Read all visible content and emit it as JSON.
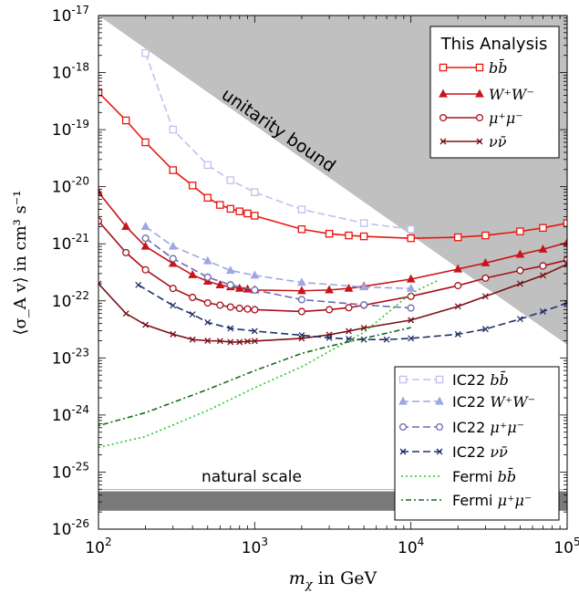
{
  "chart_data": {
    "type": "line",
    "xlabel": {
      "sym": "m",
      "sub": "χ",
      "rest": " in GeV"
    },
    "ylabel": "⟨σ_A v⟩ in cm³ s⁻¹",
    "xscale": "log",
    "yscale": "log",
    "xlim": [
      100,
      100000
    ],
    "ylim": [
      1e-26,
      1e-17
    ],
    "x_ticks": [
      {
        "v": 100,
        "b": "10",
        "e": "2"
      },
      {
        "v": 1000,
        "b": "10",
        "e": "3"
      },
      {
        "v": 10000,
        "b": "10",
        "e": "4"
      },
      {
        "v": 100000,
        "b": "10",
        "e": "5"
      }
    ],
    "y_ticks": [
      {
        "v": 1e-26,
        "b": "10",
        "e": "-26"
      },
      {
        "v": 1e-25,
        "b": "10",
        "e": "-25"
      },
      {
        "v": 1e-24,
        "b": "10",
        "e": "-24"
      },
      {
        "v": 1e-23,
        "b": "10",
        "e": "-23"
      },
      {
        "v": 1e-22,
        "b": "10",
        "e": "-22"
      },
      {
        "v": 1e-21,
        "b": "10",
        "e": "-21"
      },
      {
        "v": 1e-20,
        "b": "10",
        "e": "-20"
      },
      {
        "v": 1e-19,
        "b": "10",
        "e": "-19"
      },
      {
        "v": 1e-18,
        "b": "10",
        "e": "-18"
      },
      {
        "v": 1e-17,
        "b": "10",
        "e": "-17"
      }
    ],
    "annotations": {
      "unitarity": "unitarity bound",
      "natural": "natural scale"
    },
    "regions": {
      "unitarity": {
        "x": [
          100,
          100000
        ],
        "y": [
          1e-17,
          1.7e-23
        ]
      },
      "natural": {
        "y": [
          2.1e-26,
          4.6e-26
        ]
      }
    },
    "legend_top": {
      "title": "This Analysis",
      "position": "top-right",
      "entries": [
        "bb̄",
        "W⁺W⁻",
        "μ⁺μ⁻",
        "νν̄"
      ]
    },
    "legend_bottom": {
      "position": "bottom-right",
      "entries": [
        "IC22 bb̄",
        "IC22 W⁺W⁻",
        "IC22 μ⁺μ⁻",
        "IC22 νν̄",
        "Fermi bb̄",
        "Fermi μ⁺μ⁻"
      ]
    },
    "series": [
      {
        "name": "bb̄",
        "legend": "top",
        "math": "bb̄",
        "prefix": "",
        "color": "#e8170f",
        "dash": "",
        "marker": "square",
        "width": 1.6,
        "points": [
          [
            100,
            4.5e-19
          ],
          [
            150,
            1.45e-19
          ],
          [
            200,
            6e-20
          ],
          [
            300,
            1.95e-20
          ],
          [
            400,
            1.05e-20
          ],
          [
            500,
            6.4e-21
          ],
          [
            600,
            4.8e-21
          ],
          [
            700,
            4.1e-21
          ],
          [
            800,
            3.7e-21
          ],
          [
            900,
            3.4e-21
          ],
          [
            1000,
            3.1e-21
          ],
          [
            2000,
            1.8e-21
          ],
          [
            3000,
            1.5e-21
          ],
          [
            4000,
            1.4e-21
          ],
          [
            5000,
            1.35e-21
          ],
          [
            10000,
            1.25e-21
          ],
          [
            20000,
            1.3e-21
          ],
          [
            30000,
            1.4e-21
          ],
          [
            50000,
            1.65e-21
          ],
          [
            70000,
            1.9e-21
          ],
          [
            100000,
            2.3e-21
          ]
        ]
      },
      {
        "name": "W⁺W⁻",
        "legend": "top",
        "math": "W⁺W⁻",
        "prefix": "",
        "color": "#c8141a",
        "dash": "",
        "marker": "triangle",
        "width": 1.6,
        "points": [
          [
            100,
            8e-21
          ],
          [
            150,
            2e-21
          ],
          [
            200,
            9e-22
          ],
          [
            300,
            4.5e-22
          ],
          [
            400,
            2.85e-22
          ],
          [
            500,
            2.2e-22
          ],
          [
            600,
            1.9e-22
          ],
          [
            700,
            1.75e-22
          ],
          [
            800,
            1.65e-22
          ],
          [
            900,
            1.6e-22
          ],
          [
            1000,
            1.55e-22
          ],
          [
            2000,
            1.5e-22
          ],
          [
            3000,
            1.55e-22
          ],
          [
            4000,
            1.65e-22
          ],
          [
            5000,
            1.8e-22
          ],
          [
            10000,
            2.4e-22
          ],
          [
            20000,
            3.6e-22
          ],
          [
            30000,
            4.6e-22
          ],
          [
            50000,
            6.5e-22
          ],
          [
            70000,
            8e-22
          ],
          [
            100000,
            1.05e-21
          ]
        ]
      },
      {
        "name": "μ⁺μ⁻",
        "legend": "top",
        "math": "μ⁺μ⁻",
        "prefix": "",
        "color": "#a8101a",
        "dash": "",
        "marker": "circle",
        "width": 1.6,
        "points": [
          [
            100,
            2.5e-21
          ],
          [
            150,
            7e-22
          ],
          [
            200,
            3.5e-22
          ],
          [
            300,
            1.65e-22
          ],
          [
            400,
            1.15e-22
          ],
          [
            500,
            9.2e-23
          ],
          [
            600,
            8.4e-23
          ],
          [
            700,
            7.8e-23
          ],
          [
            800,
            7.4e-23
          ],
          [
            900,
            7.2e-23
          ],
          [
            1000,
            7e-23
          ],
          [
            2000,
            6.5e-23
          ],
          [
            3000,
            7e-23
          ],
          [
            4000,
            7.6e-23
          ],
          [
            5000,
            8.4e-23
          ],
          [
            10000,
            1.2e-22
          ],
          [
            20000,
            1.85e-22
          ],
          [
            30000,
            2.5e-22
          ],
          [
            50000,
            3.4e-22
          ],
          [
            70000,
            4.1e-22
          ],
          [
            100000,
            5.2e-22
          ]
        ]
      },
      {
        "name": "νν̄",
        "legend": "top",
        "math": "νν̄",
        "prefix": "",
        "color": "#7a1016",
        "dash": "",
        "marker": "x",
        "width": 1.6,
        "points": [
          [
            100,
            2e-22
          ],
          [
            150,
            6e-23
          ],
          [
            200,
            3.8e-23
          ],
          [
            300,
            2.6e-23
          ],
          [
            400,
            2.1e-23
          ],
          [
            500,
            2e-23
          ],
          [
            600,
            1.98e-23
          ],
          [
            700,
            1.9e-23
          ],
          [
            800,
            1.9e-23
          ],
          [
            900,
            1.95e-23
          ],
          [
            1000,
            1.98e-23
          ],
          [
            2000,
            2.2e-23
          ],
          [
            3000,
            2.55e-23
          ],
          [
            4000,
            2.95e-23
          ],
          [
            5000,
            3.35e-23
          ],
          [
            10000,
            4.6e-23
          ],
          [
            20000,
            8e-23
          ],
          [
            30000,
            1.2e-22
          ],
          [
            50000,
            2e-22
          ],
          [
            70000,
            2.8e-22
          ],
          [
            100000,
            4.4e-22
          ]
        ]
      },
      {
        "name": "IC22 bb̄",
        "legend": "bottom",
        "math": "bb̄",
        "prefix": "IC22 ",
        "color": "#c0c0ee",
        "dash": "8,4",
        "marker": "square-open",
        "width": 1.6,
        "points": [
          [
            200,
            2.2e-18
          ],
          [
            300,
            1e-19
          ],
          [
            500,
            2.4e-20
          ],
          [
            700,
            1.3e-20
          ],
          [
            1000,
            8e-21
          ],
          [
            2000,
            4e-21
          ],
          [
            5000,
            2.3e-21
          ],
          [
            10000,
            1.8e-21
          ]
        ]
      },
      {
        "name": "IC22 W⁺W⁻",
        "legend": "bottom",
        "math": "W⁺W⁻",
        "prefix": "IC22 ",
        "color": "#9ea6e6",
        "dash": "8,4",
        "marker": "triangle",
        "width": 1.6,
        "points": [
          [
            200,
            2e-21
          ],
          [
            300,
            9e-22
          ],
          [
            500,
            5e-22
          ],
          [
            700,
            3.4e-22
          ],
          [
            1000,
            2.8e-22
          ],
          [
            2000,
            2.1e-22
          ],
          [
            5000,
            1.75e-22
          ],
          [
            10000,
            1.65e-22
          ]
        ]
      },
      {
        "name": "IC22 μ⁺μ⁻",
        "legend": "bottom",
        "math": "μ⁺μ⁻",
        "prefix": "IC22 ",
        "color": "#6a6ab0",
        "dash": "8,4",
        "marker": "circle-open",
        "width": 1.6,
        "points": [
          [
            200,
            1.25e-21
          ],
          [
            300,
            5.5e-22
          ],
          [
            500,
            2.6e-22
          ],
          [
            700,
            1.9e-22
          ],
          [
            1000,
            1.55e-22
          ],
          [
            2000,
            1.05e-22
          ],
          [
            5000,
            8.5e-23
          ],
          [
            10000,
            7.5e-23
          ]
        ]
      },
      {
        "name": "IC22 νν̄",
        "legend": "bottom",
        "math": "νν̄",
        "prefix": "IC22 ",
        "color": "#20306a",
        "dash": "8,4",
        "marker": "x",
        "width": 1.6,
        "points": [
          [
            180,
            1.9e-22
          ],
          [
            300,
            8.3e-23
          ],
          [
            400,
            5.8e-23
          ],
          [
            500,
            4.2e-23
          ],
          [
            700,
            3.3e-23
          ],
          [
            1000,
            2.95e-23
          ],
          [
            2000,
            2.5e-23
          ],
          [
            3000,
            2.25e-23
          ],
          [
            4000,
            2.15e-23
          ],
          [
            5000,
            2.1e-23
          ],
          [
            7000,
            2.1e-23
          ],
          [
            10000,
            2.2e-23
          ],
          [
            20000,
            2.6e-23
          ],
          [
            30000,
            3.2e-23
          ],
          [
            50000,
            4.8e-23
          ],
          [
            70000,
            6.5e-23
          ],
          [
            100000,
            9.2e-23
          ]
        ]
      },
      {
        "name": "Fermi bb̄",
        "legend": "bottom",
        "math": "bb̄",
        "prefix": "Fermi ",
        "color": "#22cc22",
        "dash": "2,3",
        "marker": "none",
        "width": 1.6,
        "points": [
          [
            100,
            2.7e-25
          ],
          [
            200,
            4.2e-25
          ],
          [
            500,
            1.2e-24
          ],
          [
            1000,
            3e-24
          ],
          [
            2000,
            7e-24
          ],
          [
            3000,
            1.3e-23
          ],
          [
            5000,
            2.8e-23
          ],
          [
            7000,
            6e-23
          ],
          [
            10000,
            1.35e-22
          ],
          [
            15000,
            2.3e-22
          ]
        ]
      },
      {
        "name": "Fermi μ⁺μ⁻",
        "legend": "bottom",
        "math": "μ⁺μ⁻",
        "prefix": "Fermi ",
        "color": "#1a6a1a",
        "dash": "2,3,6,3",
        "marker": "none",
        "width": 1.6,
        "points": [
          [
            100,
            6.5e-25
          ],
          [
            200,
            1.1e-24
          ],
          [
            500,
            2.8e-24
          ],
          [
            1000,
            6e-24
          ],
          [
            2000,
            1.2e-23
          ],
          [
            3000,
            1.6e-23
          ],
          [
            5000,
            2.2e-23
          ],
          [
            10000,
            3.4e-23
          ]
        ]
      }
    ]
  }
}
